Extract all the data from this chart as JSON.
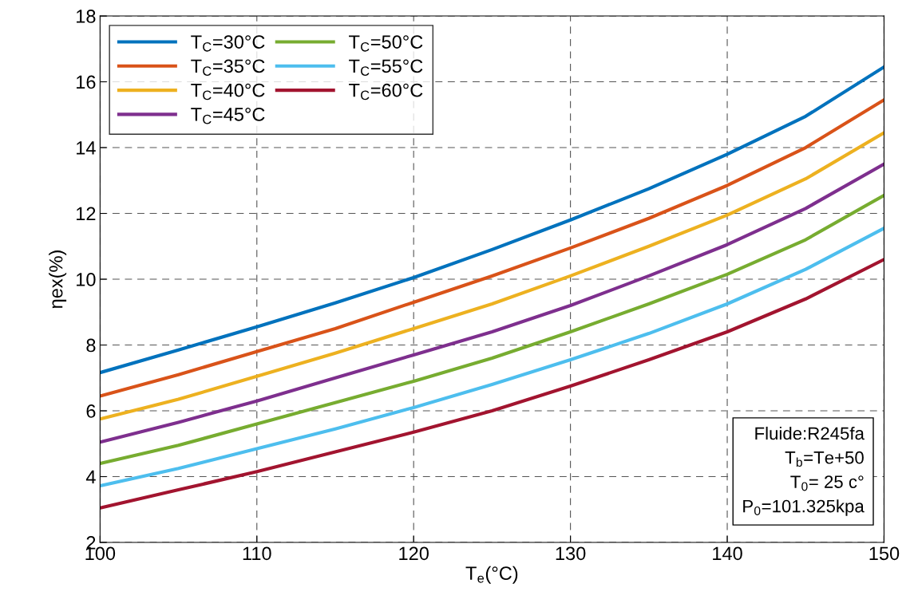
{
  "chart_data": {
    "type": "line",
    "xlabel": "T$_{e}$(°C)",
    "ylabel": "ηex(%)",
    "x": [
      100,
      105,
      110,
      115,
      120,
      125,
      130,
      135,
      140,
      145,
      150
    ],
    "xlim": [
      100,
      150
    ],
    "xticks": [
      100,
      110,
      120,
      130,
      140,
      150
    ],
    "ylim": [
      2,
      18
    ],
    "yticks": [
      2,
      4,
      6,
      8,
      10,
      12,
      14,
      16,
      18
    ],
    "grid": true,
    "legend": "top left",
    "line_style": "solid",
    "marker": "none",
    "series": [
      {
        "name": "T$_{C}$=30°C",
        "color": "#0072bd",
        "values": [
          7.16,
          7.85,
          8.55,
          9.28,
          10.05,
          10.9,
          11.8,
          12.75,
          13.8,
          14.95,
          16.45
        ]
      },
      {
        "name": "T$_{C}$=35°C",
        "color": "#d95319",
        "values": [
          6.45,
          7.1,
          7.8,
          8.5,
          9.3,
          10.1,
          10.95,
          11.85,
          12.85,
          14.0,
          15.45
        ]
      },
      {
        "name": "T$_{C}$=40°C",
        "color": "#edb120",
        "values": [
          5.75,
          6.35,
          7.05,
          7.75,
          8.5,
          9.25,
          10.1,
          11.0,
          11.95,
          13.05,
          14.45
        ]
      },
      {
        "name": "T$_{C}$=45°C",
        "color": "#7e2f8e",
        "values": [
          5.05,
          5.65,
          6.3,
          7.0,
          7.7,
          8.4,
          9.2,
          10.1,
          11.05,
          12.15,
          13.5
        ]
      },
      {
        "name": "T$_{C}$=50°C",
        "color": "#77ac30",
        "values": [
          4.4,
          4.95,
          5.6,
          6.25,
          6.9,
          7.6,
          8.4,
          9.25,
          10.15,
          11.2,
          12.55
        ]
      },
      {
        "name": "T$_{C}$=55°C",
        "color": "#4dbeee",
        "values": [
          3.72,
          4.25,
          4.85,
          5.45,
          6.1,
          6.8,
          7.55,
          8.35,
          9.25,
          10.3,
          11.55
        ]
      },
      {
        "name": "T$_{C}$=60°C",
        "color": "#a2142f",
        "values": [
          3.05,
          3.6,
          4.15,
          4.75,
          5.35,
          6.0,
          6.75,
          7.55,
          8.4,
          9.4,
          10.6
        ]
      }
    ],
    "annotations": [
      "Fluide:R245fa",
      "T$_{b}$=Te+50",
      "T$_{0}$= 25 c°",
      "P$_{0}$=101.325kpa"
    ]
  }
}
